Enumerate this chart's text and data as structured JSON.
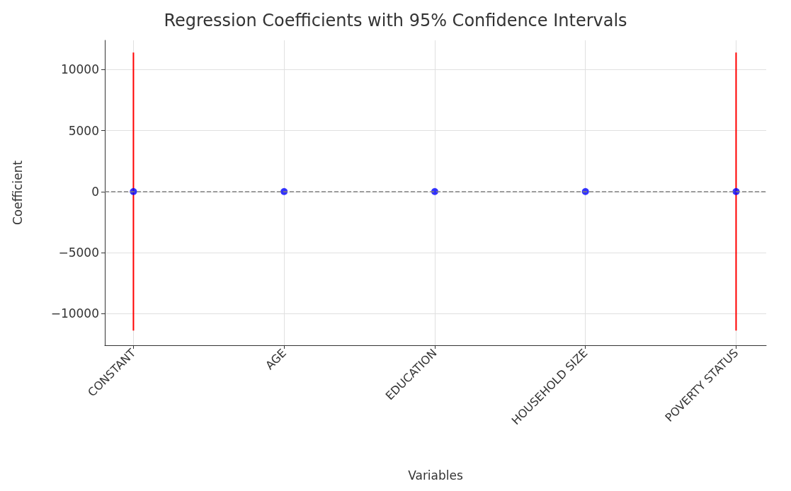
{
  "chart_data": {
    "type": "scatter",
    "title": "Regression Coefficients with 95% Confidence Intervals",
    "xlabel": "Variables",
    "ylabel": "Coefficient",
    "categories": [
      "CONSTANT",
      "AGE",
      "EDUCATION",
      "HOUSEHOLD SIZE",
      "POVERTY STATUS"
    ],
    "series": [
      {
        "color": "#0000ff",
        "values": [
          0,
          0,
          0,
          0,
          0
        ],
        "errors": [
          11400,
          null,
          null,
          null,
          11400
        ]
      }
    ],
    "ylim": [
      -12600,
      12400
    ],
    "yticks": [
      -10000,
      -5000,
      0,
      5000,
      10000
    ],
    "grid": true,
    "marker": "circle",
    "ref_lines": [
      {
        "axis": "y",
        "value": 0,
        "color": "#808080",
        "line_style": "dashed"
      }
    ]
  }
}
